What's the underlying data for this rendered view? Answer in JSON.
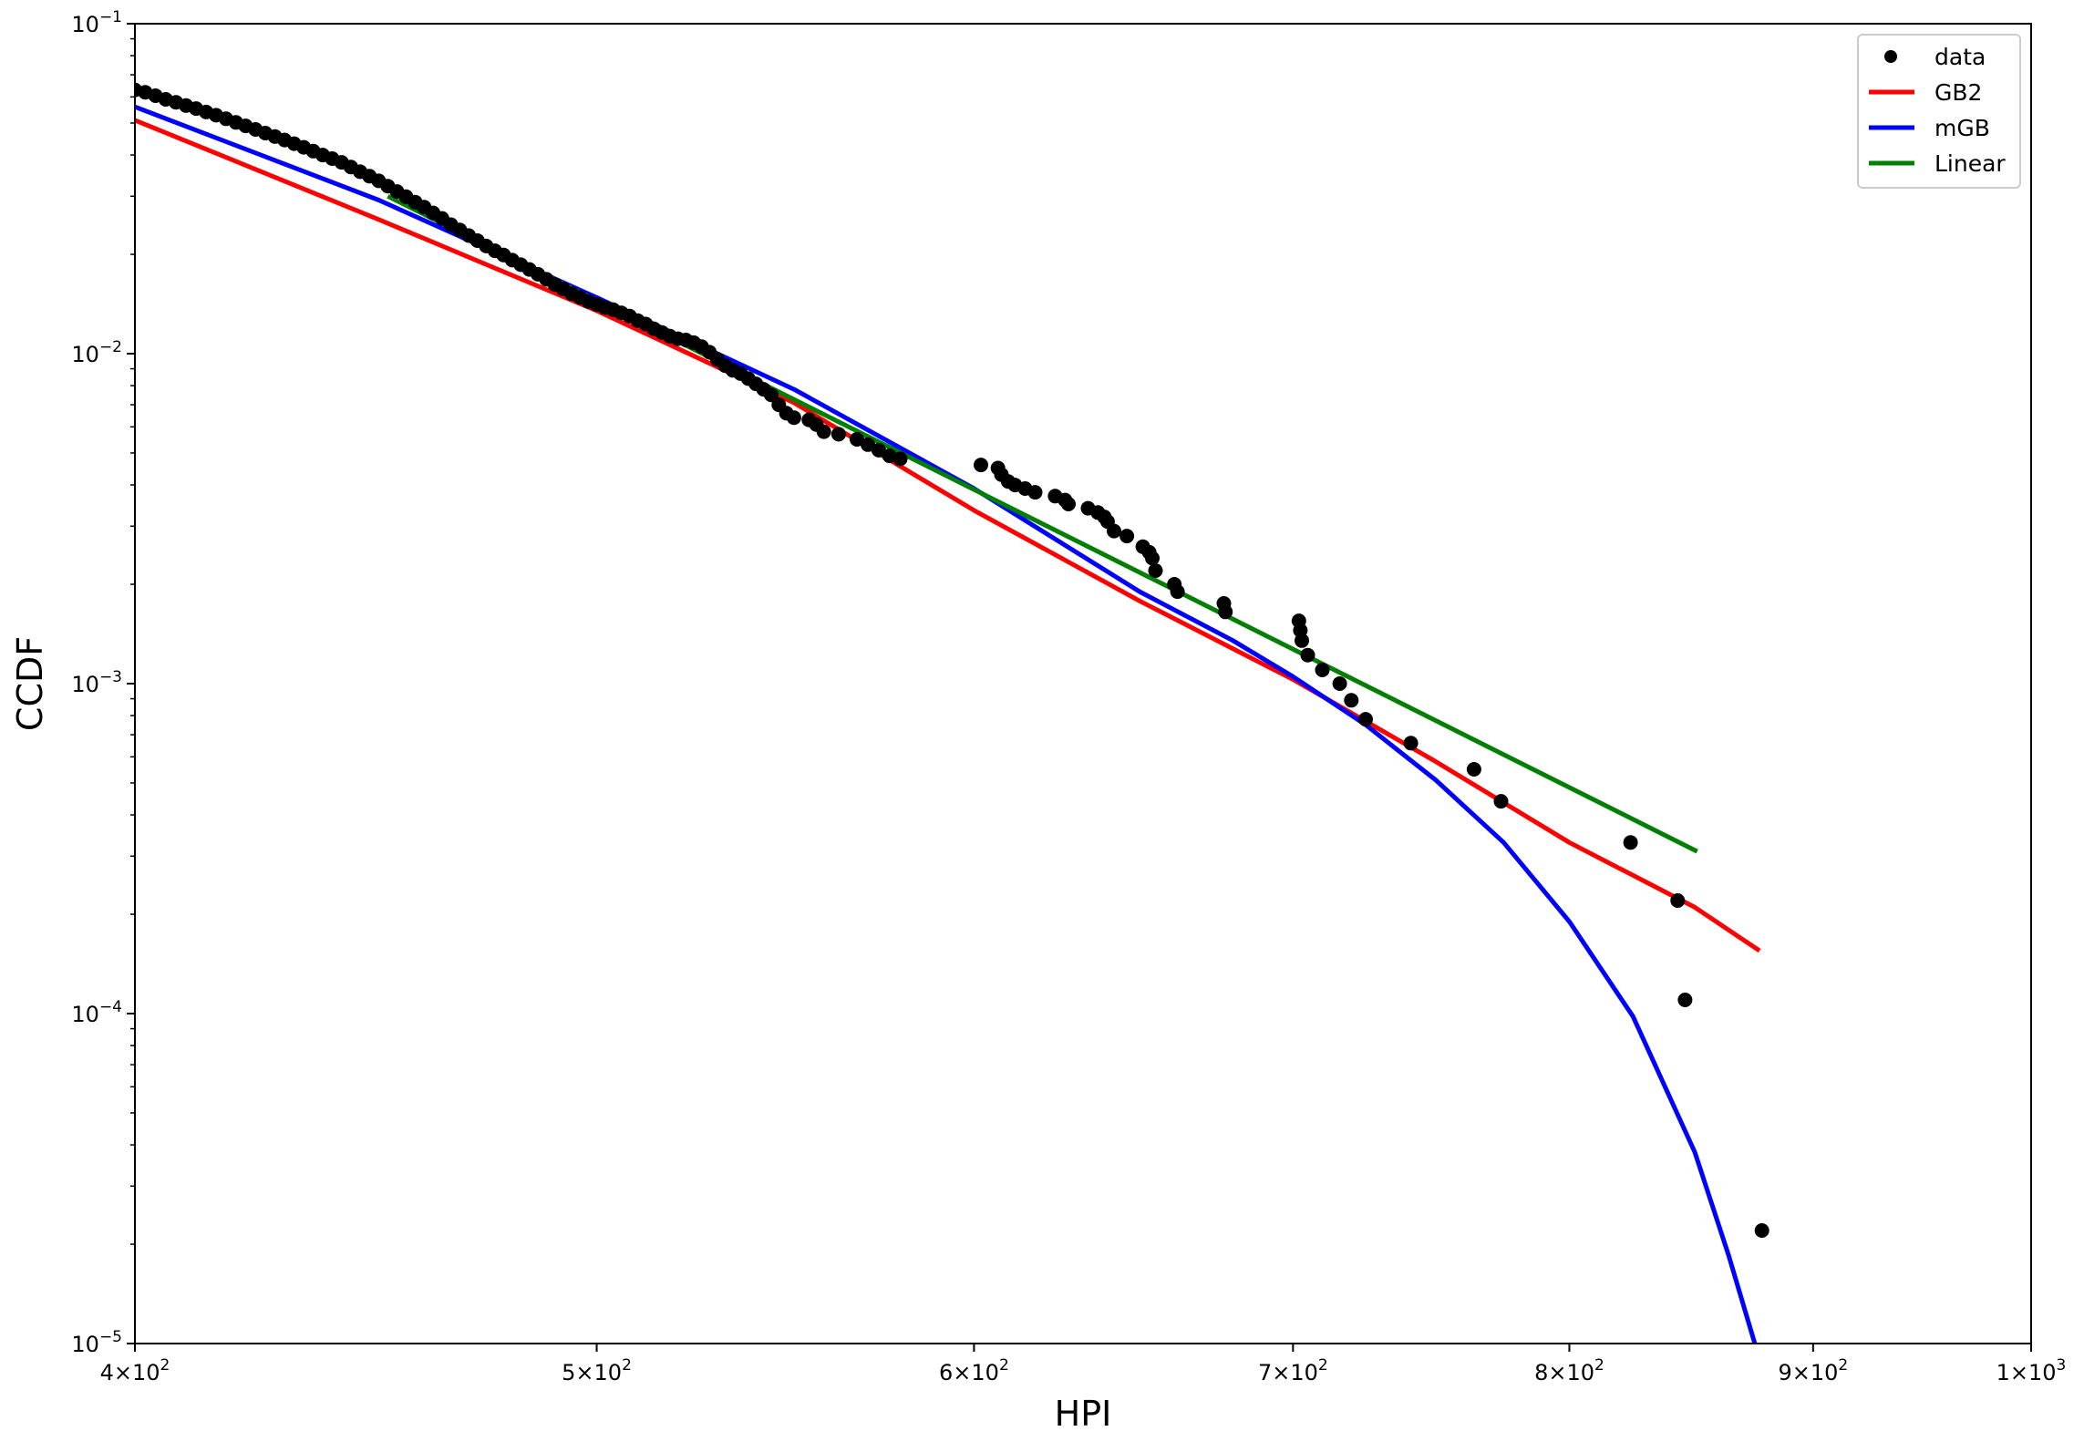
{
  "chart_data": {
    "type": "scatter",
    "xlabel": "HPI",
    "ylabel": "CCDF",
    "xscale": "log",
    "yscale": "log",
    "xlim": [
      400,
      1000
    ],
    "ylim": [
      1e-05,
      0.1
    ],
    "grid": false,
    "legend_position": "top-right",
    "x_ticks": [
      {
        "value": 400,
        "mantissa": "4",
        "base": "10",
        "exp": "2"
      },
      {
        "value": 500,
        "mantissa": "5",
        "base": "10",
        "exp": "2"
      },
      {
        "value": 600,
        "mantissa": "6",
        "base": "10",
        "exp": "2"
      },
      {
        "value": 700,
        "mantissa": "7",
        "base": "10",
        "exp": "2"
      },
      {
        "value": 800,
        "mantissa": "8",
        "base": "10",
        "exp": "2"
      },
      {
        "value": 900,
        "mantissa": "9",
        "base": "10",
        "exp": "2"
      },
      {
        "value": 1000,
        "mantissa": "1",
        "base": "10",
        "exp": "3"
      }
    ],
    "y_ticks": [
      {
        "value": 0.1,
        "base": "10",
        "exp": "−1"
      },
      {
        "value": 0.01,
        "base": "10",
        "exp": "−2"
      },
      {
        "value": 0.001,
        "base": "10",
        "exp": "−3"
      },
      {
        "value": 0.0001,
        "base": "10",
        "exp": "−4"
      },
      {
        "value": 1e-05,
        "base": "10",
        "exp": "−5"
      }
    ],
    "series": [
      {
        "name": "data",
        "kind": "scatter",
        "color": "#000000",
        "points": [
          [
            400,
            0.063
          ],
          [
            402,
            0.062
          ],
          [
            404,
            0.0605
          ],
          [
            406,
            0.059
          ],
          [
            408,
            0.0578
          ],
          [
            410,
            0.0565
          ],
          [
            412,
            0.0553
          ],
          [
            414,
            0.054
          ],
          [
            416,
            0.0528
          ],
          [
            418,
            0.0515
          ],
          [
            420,
            0.0502
          ],
          [
            422,
            0.049
          ],
          [
            424,
            0.0478
          ],
          [
            426,
            0.0466
          ],
          [
            428,
            0.0455
          ],
          [
            430,
            0.0444
          ],
          [
            432,
            0.0433
          ],
          [
            434,
            0.0422
          ],
          [
            436,
            0.0411
          ],
          [
            438,
            0.04
          ],
          [
            440,
            0.039
          ],
          [
            442,
            0.038
          ],
          [
            444,
            0.0368
          ],
          [
            446,
            0.0356
          ],
          [
            448,
            0.0345
          ],
          [
            450,
            0.0334
          ],
          [
            452,
            0.0322
          ],
          [
            454,
            0.031
          ],
          [
            456,
            0.0299
          ],
          [
            458,
            0.0288
          ],
          [
            460,
            0.0278
          ],
          [
            462,
            0.0267
          ],
          [
            464,
            0.0257
          ],
          [
            466,
            0.0246
          ],
          [
            468,
            0.0237
          ],
          [
            470,
            0.0228
          ],
          [
            472,
            0.022
          ],
          [
            474,
            0.0212
          ],
          [
            476,
            0.0205
          ],
          [
            478,
            0.0199
          ],
          [
            480,
            0.0192
          ],
          [
            482,
            0.0186
          ],
          [
            484,
            0.018
          ],
          [
            486,
            0.0174
          ],
          [
            488,
            0.0168
          ],
          [
            490,
            0.0162
          ],
          [
            492,
            0.0157
          ],
          [
            494,
            0.0152
          ],
          [
            496,
            0.0148
          ],
          [
            498,
            0.0144
          ],
          [
            500,
            0.0141
          ],
          [
            502,
            0.0138
          ],
          [
            504,
            0.0136
          ],
          [
            506,
            0.0133
          ],
          [
            508,
            0.013
          ],
          [
            510,
            0.0126
          ],
          [
            512,
            0.0123
          ],
          [
            514,
            0.0119
          ],
          [
            516,
            0.0116
          ],
          [
            518,
            0.0113
          ],
          [
            520,
            0.0111
          ],
          [
            522,
            0.011
          ],
          [
            524,
            0.0108
          ],
          [
            526,
            0.0105
          ],
          [
            528,
            0.0101
          ],
          [
            530,
            0.0096
          ],
          [
            532,
            0.0092
          ],
          [
            534,
            0.0089
          ],
          [
            536,
            0.0087
          ],
          [
            538,
            0.0084
          ],
          [
            540,
            0.0081
          ],
          [
            542,
            0.0078
          ],
          [
            544,
            0.0075
          ],
          [
            546,
            0.007
          ],
          [
            548,
            0.0066
          ],
          [
            550,
            0.0064
          ],
          [
            554,
            0.0063
          ],
          [
            556,
            0.0061
          ],
          [
            558,
            0.0058
          ],
          [
            562,
            0.0057
          ],
          [
            567,
            0.0055
          ],
          [
            570,
            0.0053
          ],
          [
            573,
            0.0051
          ],
          [
            576,
            0.0049
          ],
          [
            579,
            0.0048
          ],
          [
            602,
            0.0046
          ],
          [
            607,
            0.0045
          ],
          [
            608,
            0.0043
          ],
          [
            610,
            0.0041
          ],
          [
            612,
            0.004
          ],
          [
            615,
            0.0039
          ],
          [
            618,
            0.0038
          ],
          [
            624,
            0.0037
          ],
          [
            627,
            0.0036
          ],
          [
            628,
            0.0035
          ],
          [
            634,
            0.0034
          ],
          [
            637,
            0.0033
          ],
          [
            639,
            0.0032
          ],
          [
            640,
            0.0031
          ],
          [
            642,
            0.0029
          ],
          [
            646,
            0.0028
          ],
          [
            651,
            0.0026
          ],
          [
            653,
            0.0025
          ],
          [
            654,
            0.0024
          ],
          [
            655,
            0.0022
          ],
          [
            661,
            0.002
          ],
          [
            662,
            0.0019
          ],
          [
            677,
            0.00175
          ],
          [
            677.5,
            0.00165
          ],
          [
            702,
            0.00155
          ],
          [
            702.5,
            0.00145
          ],
          [
            703,
            0.00135
          ],
          [
            705,
            0.00122
          ],
          [
            710,
            0.0011
          ],
          [
            716,
            0.001
          ],
          [
            720,
            0.00089
          ],
          [
            725,
            0.00078
          ],
          [
            741,
            0.00066
          ],
          [
            764,
            0.00055
          ],
          [
            774,
            0.00044
          ],
          [
            824,
            0.00033
          ],
          [
            843,
            0.00022
          ],
          [
            846,
            0.00011
          ],
          [
            878,
            2.2e-05
          ]
        ]
      },
      {
        "name": "GB2",
        "kind": "line",
        "color": "#ff0000",
        "points": [
          [
            400,
            0.051
          ],
          [
            450,
            0.0255
          ],
          [
            500,
            0.0135
          ],
          [
            550,
            0.0071
          ],
          [
            600,
            0.00335
          ],
          [
            650,
            0.00178
          ],
          [
            700,
            0.00103
          ],
          [
            750,
            0.00058
          ],
          [
            800,
            0.00033
          ],
          [
            850,
            0.00021
          ],
          [
            877,
            0.000155
          ]
        ]
      },
      {
        "name": "mGB",
        "kind": "line",
        "color": "#0000ff",
        "points": [
          [
            400,
            0.056
          ],
          [
            450,
            0.0292
          ],
          [
            500,
            0.0148
          ],
          [
            550,
            0.0078
          ],
          [
            600,
            0.0039
          ],
          [
            650,
            0.0019
          ],
          [
            680,
            0.00135
          ],
          [
            700,
            0.00105
          ],
          [
            725,
            0.00075
          ],
          [
            750,
            0.00051
          ],
          [
            775,
            0.00033
          ],
          [
            800,
            0.00019
          ],
          [
            825,
            9.8e-05
          ],
          [
            850,
            3.8e-05
          ],
          [
            864,
            1.85e-05
          ],
          [
            875,
            1e-05
          ]
        ]
      },
      {
        "name": "Linear",
        "kind": "line",
        "color": "#008000",
        "points": [
          [
            452,
            0.03
          ],
          [
            851,
            0.00031
          ]
        ]
      }
    ]
  }
}
